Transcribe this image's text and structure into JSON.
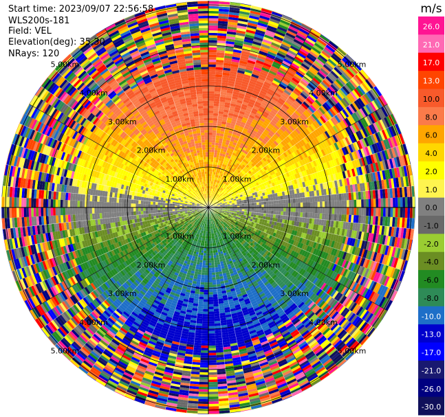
{
  "info": {
    "start_time": "Start time: 2023/09/07 22:56:58",
    "site": "WLS200s-181",
    "field": "Field: VEL",
    "elevation": "Elevation(deg): 35.30",
    "nrays": "NRays: 120"
  },
  "chart_data": {
    "type": "heatmap",
    "projection": "polar-ppi",
    "field": "VEL",
    "nrays": 120,
    "range_rings_km": [
      1.0,
      2.0,
      3.0,
      4.0,
      5.0
    ],
    "ring_labels": [
      "1.00km",
      "2.00km",
      "3.00km",
      "4.00km",
      "5.00km"
    ],
    "max_range_km": 5.1,
    "colorbar": {
      "unit": "m/s",
      "ticks": [
        "26.0",
        "21.0",
        "17.0",
        "13.0",
        "10.0",
        "8.0",
        "6.0",
        "4.0",
        "2.0",
        "1.0",
        "0.0",
        "-1.0",
        "-2.0",
        "-4.0",
        "-6.0",
        "-8.0",
        "-10.0",
        "-13.0",
        "-17.0",
        "-21.0",
        "-26.0",
        "-30.0"
      ],
      "colors": [
        "#ff1493",
        "#ff69b4",
        "#ff0000",
        "#ff4500",
        "#f85a2b",
        "#fb7b4a",
        "#ffa500",
        "#ffd700",
        "#ffff00",
        "#fff44f",
        "#808080",
        "#696969",
        "#9acd32",
        "#6b8e23",
        "#228b22",
        "#2e8b57",
        "#1e6fc8",
        "#0000cd",
        "#0000ff",
        "#191970",
        "#000080",
        "#10105a"
      ]
    }
  }
}
